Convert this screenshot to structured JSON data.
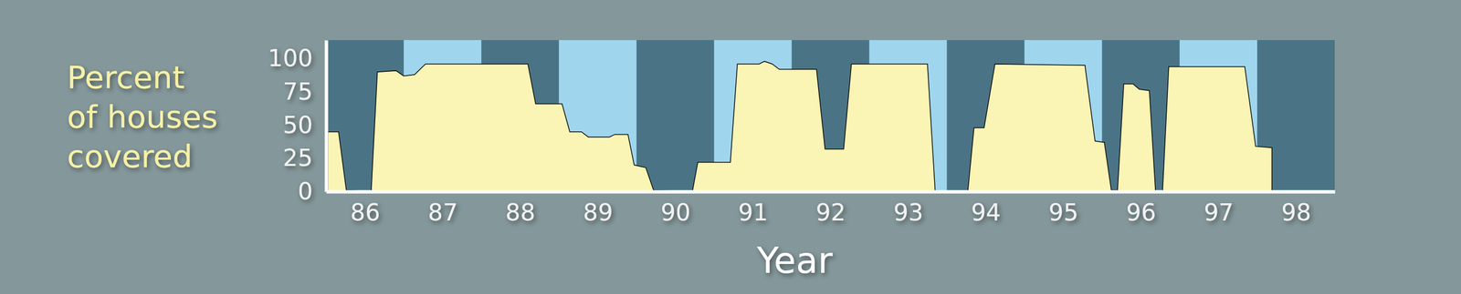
{
  "chart_data": {
    "type": "area",
    "y_label": [
      "Percent",
      "of houses",
      "covered"
    ],
    "x_label": "Year",
    "x": [
      85.52,
      85.66,
      85.76,
      86.08,
      86.16,
      86.4,
      86.5,
      86.64,
      86.78,
      88.1,
      88.2,
      88.54,
      88.64,
      88.79,
      88.88,
      89.15,
      89.22,
      89.39,
      89.47,
      89.62,
      89.72,
      90.22,
      90.29,
      90.71,
      90.8,
      91.08,
      91.15,
      91.25,
      91.34,
      91.82,
      91.93,
      92.17,
      92.27,
      93.25,
      93.35,
      93.77,
      93.85,
      93.98,
      94.12,
      95.28,
      95.41,
      95.53,
      95.62,
      95.7,
      95.78,
      95.9,
      95.98,
      96.11,
      96.19,
      96.28,
      96.36,
      97.34,
      97.48,
      97.69
    ],
    "values": [
      45,
      45,
      1,
      0,
      90,
      91,
      87,
      88,
      96,
      96,
      66,
      66,
      45,
      45,
      41,
      41,
      43,
      43,
      20,
      18,
      1,
      0,
      22,
      22,
      96,
      96,
      98,
      96,
      92,
      92,
      32,
      32,
      96,
      96,
      0,
      0,
      48,
      48,
      96,
      95,
      38,
      37,
      1,
      1,
      81,
      81,
      77,
      76,
      0,
      0,
      94,
      94,
      34,
      33
    ],
    "color": "#faf5b4",
    "xlim": [
      85.5,
      98.5
    ],
    "xticks": [
      86,
      87,
      88,
      89,
      90,
      91,
      92,
      93,
      94,
      95,
      96,
      97,
      98
    ],
    "ylim": [
      0,
      114
    ],
    "yticks": [
      0,
      25,
      50,
      75,
      100
    ],
    "shaded_periods": [
      [
        86.5,
        87.5
      ],
      [
        88.5,
        89.5
      ],
      [
        90.5,
        91.5
      ],
      [
        92.5,
        93.5
      ],
      [
        94.5,
        95.5
      ],
      [
        96.5,
        97.5
      ]
    ]
  }
}
